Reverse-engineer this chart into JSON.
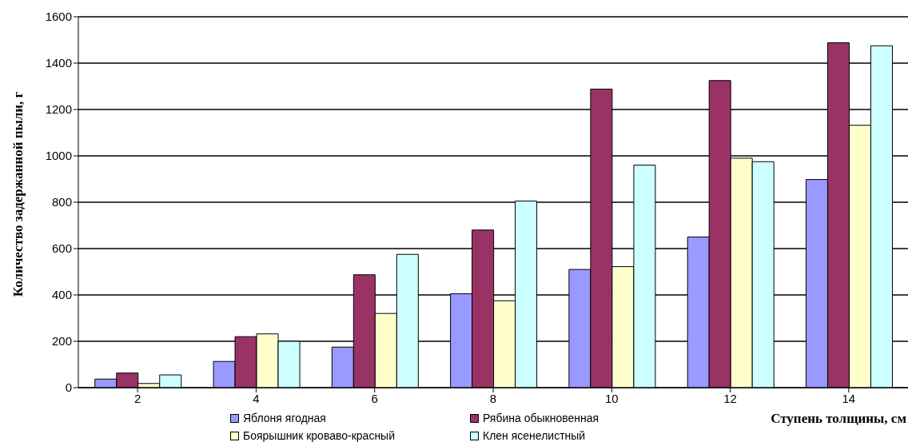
{
  "chart_data": {
    "type": "bar",
    "categories": [
      "2",
      "4",
      "6",
      "8",
      "10",
      "12",
      "14"
    ],
    "series": [
      {
        "name": "Яблоня ягодная",
        "color": "#9999ff",
        "values": [
          37,
          113,
          175,
          405,
          510,
          650,
          898
        ]
      },
      {
        "name": "Рябина обыкновенная",
        "color": "#993366",
        "values": [
          63,
          220,
          487,
          680,
          1288,
          1325,
          1488
        ]
      },
      {
        "name": "Боярышник кроваво-красный",
        "color": "#ffffcc",
        "values": [
          18,
          232,
          320,
          375,
          522,
          990,
          1132
        ]
      },
      {
        "name": "Клен ясенелистный",
        "color": "#ccffff",
        "values": [
          55,
          200,
          575,
          805,
          960,
          975,
          1475
        ]
      }
    ],
    "xlabel": "Ступень толщины, см",
    "ylabel": "Количество задержанной пыли, г",
    "ylim": [
      0,
      1600
    ],
    "yticks": [
      0,
      200,
      400,
      600,
      800,
      1000,
      1200,
      1400,
      1600
    ],
    "grid": "y",
    "legend": "bottom"
  }
}
